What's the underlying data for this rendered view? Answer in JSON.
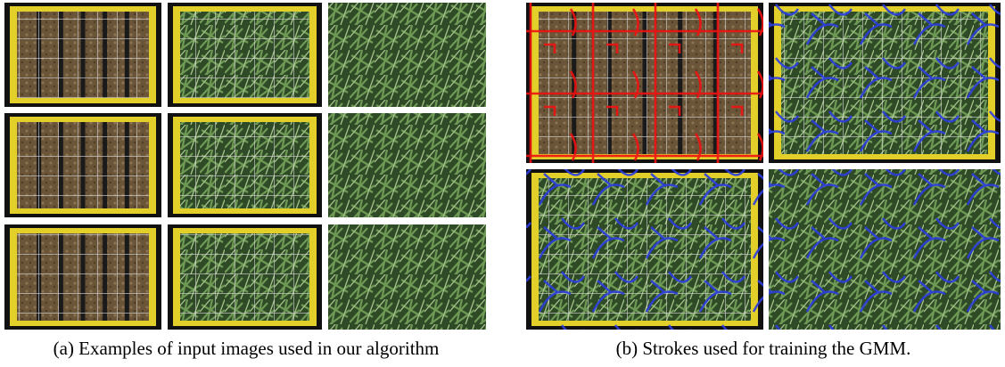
{
  "figure": {
    "captions": [
      "(a) Examples of input images used in our algorithm",
      "(b) Strokes used for training the GMM."
    ]
  }
}
